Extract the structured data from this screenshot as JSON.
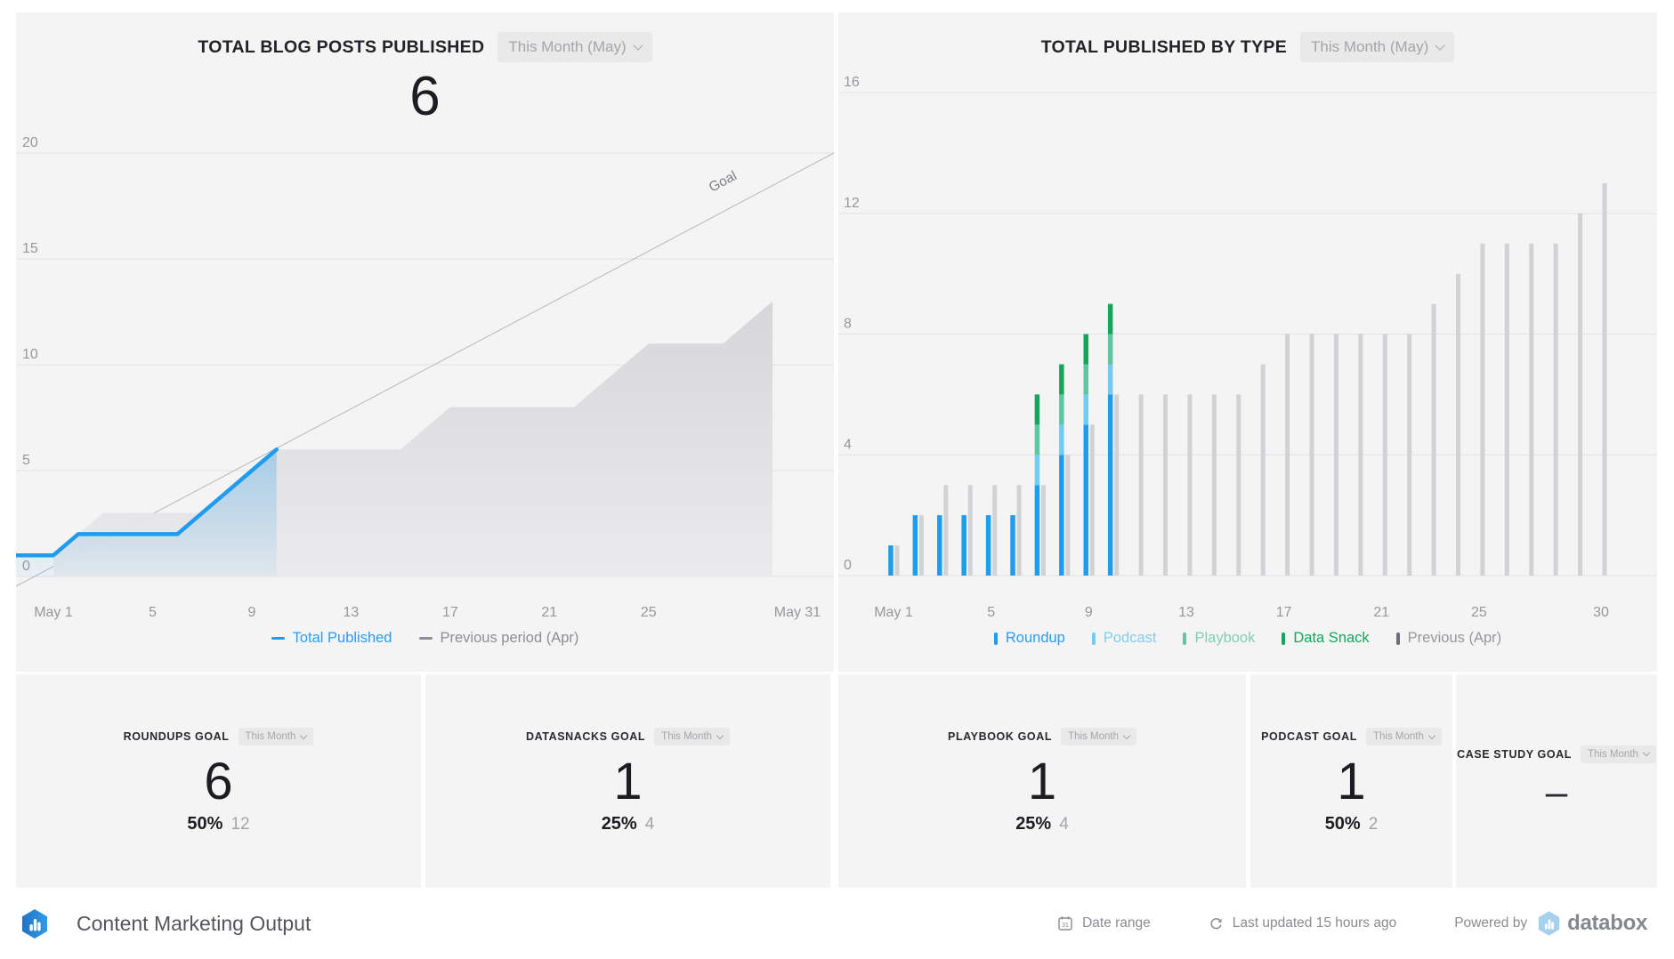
{
  "page": {
    "background": "#ffffff",
    "panel_background": "#f4f4f5",
    "accent_blue": "#1f9ced"
  },
  "left_chart": {
    "title": "TOTAL BLOG POSTS PUBLISHED",
    "range_label": "This Month (May)",
    "big_number": "6"
  },
  "right_chart": {
    "title": "TOTAL PUBLISHED BY TYPE",
    "range_label": "This Month (May)"
  },
  "chart_data": [
    {
      "id": "total-blog-posts-published",
      "type": "line",
      "title": "TOTAL BLOG POSTS PUBLISHED",
      "current_total": 6,
      "ylim": [
        0,
        20
      ],
      "y_ticks": [
        0,
        5,
        10,
        15,
        20
      ],
      "x_ticks": [
        {
          "day": 1,
          "label": "May 1"
        },
        {
          "day": 5,
          "label": "5"
        },
        {
          "day": 9,
          "label": "9"
        },
        {
          "day": 13,
          "label": "13"
        },
        {
          "day": 17,
          "label": "17"
        },
        {
          "day": 21,
          "label": "21"
        },
        {
          "day": 25,
          "label": "25"
        },
        {
          "day": 31,
          "label": "May 31"
        }
      ],
      "goal": {
        "label": "Goal",
        "month_end_value": 20
      },
      "series": [
        {
          "name": "Total Published",
          "type": "line",
          "color": "#1f9ced",
          "values": [
            1,
            2,
            2,
            2,
            2,
            2,
            3,
            4,
            5,
            6
          ]
        },
        {
          "name": "Previous period (Apr)",
          "type": "area",
          "color": "#dcdcdf",
          "values": [
            1,
            2,
            3,
            3,
            3,
            3,
            3,
            4,
            5,
            6,
            6,
            6,
            6,
            6,
            6,
            7,
            8,
            8,
            8,
            8,
            8,
            8,
            9,
            10,
            11,
            11,
            11,
            11,
            12,
            13
          ]
        }
      ],
      "legend": [
        {
          "label": "Total Published",
          "color": "#1f9ced",
          "text_color": "#2d9bef"
        },
        {
          "label": "Previous period (Apr)",
          "color": "#8e8e93",
          "text_color": "#8e8e93"
        }
      ]
    },
    {
      "id": "total-published-by-type",
      "type": "bar",
      "title": "TOTAL PUBLISHED BY TYPE",
      "ylim": [
        0,
        16
      ],
      "y_ticks": [
        0,
        4,
        8,
        12,
        16
      ],
      "x_ticks": [
        {
          "day": 1,
          "label": "May 1"
        },
        {
          "day": 5,
          "label": "5"
        },
        {
          "day": 9,
          "label": "9"
        },
        {
          "day": 13,
          "label": "13"
        },
        {
          "day": 17,
          "label": "17"
        },
        {
          "day": 21,
          "label": "21"
        },
        {
          "day": 25,
          "label": "25"
        },
        {
          "day": 30,
          "label": "30"
        }
      ],
      "stack_series": [
        {
          "name": "Roundup",
          "color": "#1f9ced",
          "values": [
            1,
            2,
            2,
            2,
            2,
            2,
            3,
            4,
            5,
            6
          ]
        },
        {
          "name": "Podcast",
          "color": "#74cbf0",
          "values": [
            0,
            0,
            0,
            0,
            0,
            0,
            1,
            1,
            1,
            1
          ]
        },
        {
          "name": "Playbook",
          "color": "#5fc6a2",
          "values": [
            0,
            0,
            0,
            0,
            0,
            0,
            1,
            1,
            1,
            1
          ]
        },
        {
          "name": "Data Snack",
          "color": "#17a45c",
          "values": [
            0,
            0,
            0,
            0,
            0,
            0,
            1,
            1,
            1,
            1
          ]
        }
      ],
      "previous_series": {
        "name": "Previous (Apr)",
        "color": "#d2d2d5",
        "values": [
          1,
          2,
          3,
          3,
          3,
          3,
          3,
          4,
          5,
          6,
          6,
          6,
          6,
          6,
          6,
          7,
          8,
          8,
          8,
          8,
          8,
          8,
          9,
          10,
          11,
          11,
          11,
          11,
          12,
          13
        ]
      },
      "legend": [
        {
          "label": "Roundup",
          "color": "#1f9ced",
          "text_color": "#2d9bef"
        },
        {
          "label": "Podcast",
          "color": "#74cbf0",
          "text_color": "#86ccec"
        },
        {
          "label": "Playbook",
          "color": "#5fc6a2",
          "text_color": "#83cdb2"
        },
        {
          "label": "Data Snack",
          "color": "#17a45c",
          "text_color": "#17a45c"
        },
        {
          "label": "Previous (Apr)",
          "color": "#6e6e73",
          "text_color": "#97979c"
        }
      ]
    }
  ],
  "kpis": [
    {
      "label": "ROUNDUPS GOAL",
      "range_label": "This Month",
      "value": "6",
      "percent": "50%",
      "goal": "12"
    },
    {
      "label": "DATASNACKS GOAL",
      "range_label": "This Month",
      "value": "1",
      "percent": "25%",
      "goal": "4"
    },
    {
      "label": "PLAYBOOK GOAL",
      "range_label": "This Month",
      "value": "1",
      "percent": "25%",
      "goal": "4"
    },
    {
      "label": "PODCAST GOAL",
      "range_label": "This Month",
      "value": "1",
      "percent": "50%",
      "goal": "2"
    },
    {
      "label": "CASE STUDY GOAL",
      "range_label": "This Month",
      "value": "–"
    }
  ],
  "footer": {
    "title": "Content Marketing Output",
    "date_range_label": "Date range",
    "last_updated": "Last updated 15 hours ago",
    "powered_by_label": "Powered by",
    "brand": "databox"
  }
}
